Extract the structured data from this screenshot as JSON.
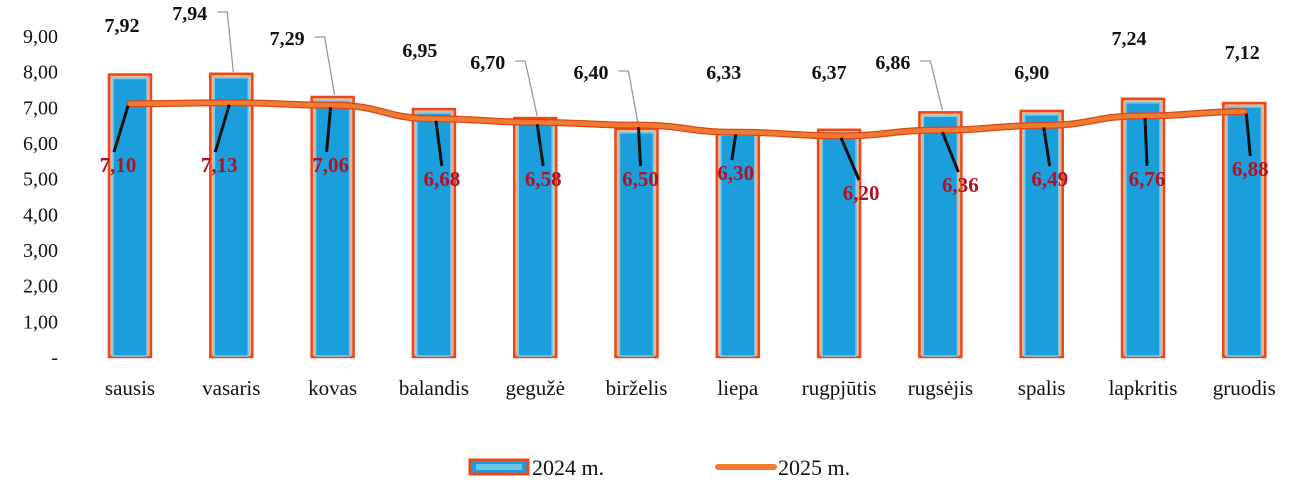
{
  "chart_data": {
    "type": "bar",
    "categories": [
      "sausis",
      "vasaris",
      "kovas",
      "balandis",
      "gegužė",
      "birželis",
      "liepa",
      "rugpjūtis",
      "rugsėjis",
      "spalis",
      "lapkritis",
      "gruodis"
    ],
    "series": [
      {
        "name": "2024 m.",
        "kind": "bar",
        "values": [
          7.92,
          7.94,
          7.29,
          6.95,
          6.7,
          6.4,
          6.33,
          6.37,
          6.86,
          6.9,
          7.24,
          7.12
        ],
        "labels": [
          "7,92",
          "7,94",
          "7,29",
          "6,95",
          "6,70",
          "6,40",
          "6,33",
          "6,37",
          "6,86",
          "6,90",
          "7,24",
          "7,12"
        ],
        "color": "#1b9fdc",
        "border_color": "#e8481c"
      },
      {
        "name": "2025 m.",
        "kind": "line",
        "values": [
          7.1,
          7.13,
          7.06,
          6.68,
          6.58,
          6.5,
          6.3,
          6.2,
          6.36,
          6.49,
          6.76,
          6.88
        ],
        "labels": [
          "7,10",
          "7,13",
          "7,06",
          "6,68",
          "6,58",
          "6,50",
          "6,30",
          "6,20",
          "6,36",
          "6,49",
          "6,76",
          "6,88"
        ],
        "color": "#f07a30",
        "label_color": "#b01224"
      }
    ],
    "y_ticks": [
      "-",
      "1,00",
      "2,00",
      "3,00",
      "4,00",
      "5,00",
      "6,00",
      "7,00",
      "8,00",
      "9,00"
    ],
    "ylim": [
      0,
      9
    ],
    "grid": false,
    "legend_position": "bottom",
    "title": "",
    "xlabel": "",
    "ylabel": ""
  }
}
